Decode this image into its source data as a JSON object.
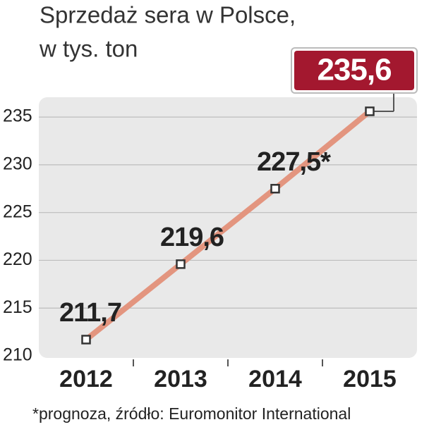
{
  "chart_data": {
    "type": "line",
    "title": "Sprzedaż sera w Polsce,",
    "subtitle": "w tys. ton",
    "categories": [
      "2012",
      "2013",
      "2014",
      "2015"
    ],
    "values": [
      211.7,
      219.6,
      227.5,
      235.6
    ],
    "value_labels": [
      "211,7",
      "219,6",
      "227,5*",
      "235,6"
    ],
    "color": "#e3957f",
    "highlight_color": "#a3182f",
    "ylim": [
      210,
      237
    ],
    "yticks": [
      210,
      215,
      220,
      225,
      230,
      235
    ],
    "grid": true,
    "note": "*prognoza, źródło: Euromonitor International"
  }
}
